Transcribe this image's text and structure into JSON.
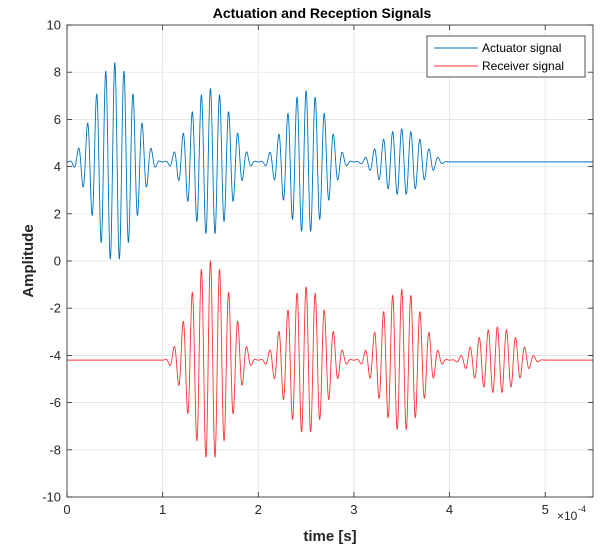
{
  "chart_data": {
    "type": "line",
    "title": "Actuation and Reception Signals",
    "xlabel": "time [s]",
    "ylabel": "Amplitude",
    "x_exponent_prefix": "×10",
    "x_exponent_power": "-4",
    "xlim": [
      0,
      5.5
    ],
    "ylim": [
      -10,
      10
    ],
    "xticks": [
      "0",
      "1",
      "2",
      "3",
      "4",
      "5"
    ],
    "yticks": [
      "-10",
      "-8",
      "-6",
      "-4",
      "-2",
      "0",
      "2",
      "4",
      "6",
      "8",
      "10"
    ],
    "grid": true,
    "legend_position": "top-right",
    "series": [
      {
        "name": "Actuator signal",
        "color": "#0072BD",
        "offset": 4.2,
        "bursts": [
          {
            "start": 0.0,
            "end": 1.0,
            "amplitude": 4.2
          },
          {
            "start": 1.0,
            "end": 2.0,
            "amplitude": 3.1
          },
          {
            "start": 2.0,
            "end": 3.0,
            "amplitude": 3.0
          },
          {
            "start": 3.0,
            "end": 4.0,
            "amplitude": 1.4
          }
        ],
        "x_end": 5.5
      },
      {
        "name": "Receiver signal",
        "color": "#FF3333",
        "offset": -4.2,
        "bursts": [
          {
            "start": 1.0,
            "end": 2.0,
            "amplitude": 4.2
          },
          {
            "start": 2.0,
            "end": 3.0,
            "amplitude": 3.1
          },
          {
            "start": 3.0,
            "end": 4.0,
            "amplitude": 3.0
          },
          {
            "start": 4.0,
            "end": 5.0,
            "amplitude": 1.4
          }
        ],
        "x_end": 5.5
      }
    ],
    "oscillation_frequency_per_unit": 10.5
  }
}
